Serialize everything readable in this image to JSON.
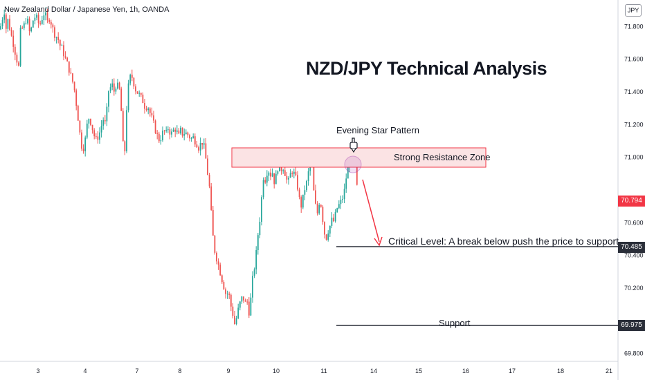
{
  "header": {
    "symbol_title": "New Zealand Dollar / Japanese Yen, 1h, OANDA",
    "currency": "JPY"
  },
  "annotations": {
    "main_title": "NZD/JPY Technical Analysis",
    "evening_star": "Evening Star Pattern",
    "resistance_zone": "Strong Resistance Zone",
    "critical_level": "Critical Level: A break below push the price to support",
    "support": "Support"
  },
  "price_labels": {
    "current": "70.794",
    "critical": "70.485",
    "support": "69.975"
  },
  "colors": {
    "up": "#26a69a",
    "down": "#ef5350",
    "zone_fill": "#fbe3e4",
    "zone_border": "#f23645",
    "level_line": "#2a2e39",
    "arrow": "#f23645"
  },
  "chart_data": {
    "type": "candlestick",
    "title": "NZD/JPY Technical Analysis",
    "instrument": "New Zealand Dollar / Japanese Yen, 1h, OANDA",
    "x_ticks": [
      "3",
      "4",
      "7",
      "8",
      "9",
      "10",
      "11",
      "14",
      "15",
      "16",
      "17",
      "18",
      "21"
    ],
    "y_ticks": [
      "71.800",
      "71.600",
      "71.400",
      "71.200",
      "71.000",
      "70.600",
      "70.400",
      "70.200",
      "69.800"
    ],
    "ylim": [
      69.75,
      71.96
    ],
    "key_levels": {
      "resistance_zone": [
        71.01,
        71.13
      ],
      "critical": 70.485,
      "support": 69.975,
      "current": 70.794
    },
    "price_path": [
      [
        0,
        71.78
      ],
      [
        3,
        71.84
      ],
      [
        6,
        71.9
      ],
      [
        9,
        71.78
      ],
      [
        12,
        71.85
      ],
      [
        15,
        71.76
      ],
      [
        18,
        71.72
      ],
      [
        21,
        71.66
      ],
      [
        24,
        71.6
      ],
      [
        27,
        71.55
      ],
      [
        30,
        71.8
      ],
      [
        33,
        71.78
      ],
      [
        36,
        71.82
      ],
      [
        39,
        71.86
      ],
      [
        42,
        71.76
      ],
      [
        45,
        71.78
      ],
      [
        48,
        71.84
      ],
      [
        51,
        71.86
      ],
      [
        54,
        71.84
      ],
      [
        57,
        71.8
      ],
      [
        60,
        71.84
      ],
      [
        63,
        71.88
      ],
      [
        66,
        71.86
      ],
      [
        69,
        71.82
      ],
      [
        72,
        71.86
      ],
      [
        75,
        71.8
      ],
      [
        78,
        71.76
      ],
      [
        81,
        71.74
      ],
      [
        84,
        71.72
      ],
      [
        87,
        71.68
      ],
      [
        90,
        71.66
      ],
      [
        93,
        71.62
      ],
      [
        96,
        71.58
      ],
      [
        99,
        71.55
      ],
      [
        102,
        71.5
      ],
      [
        105,
        71.46
      ],
      [
        108,
        71.4
      ],
      [
        111,
        71.3
      ],
      [
        114,
        71.2
      ],
      [
        117,
        71.08
      ],
      [
        120,
        71.05
      ],
      [
        123,
        71.1
      ],
      [
        126,
        71.2
      ],
      [
        129,
        71.25
      ],
      [
        132,
        71.2
      ],
      [
        135,
        71.15
      ],
      [
        138,
        71.1
      ],
      [
        141,
        71.12
      ],
      [
        144,
        71.15
      ],
      [
        147,
        71.2
      ],
      [
        150,
        71.24
      ],
      [
        153,
        71.18
      ],
      [
        156,
        71.4
      ],
      [
        159,
        71.42
      ],
      [
        162,
        71.44
      ],
      [
        165,
        71.4
      ],
      [
        168,
        71.45
      ],
      [
        171,
        71.42
      ],
      [
        174,
        71.4
      ],
      [
        177,
        71.1
      ],
      [
        180,
        71.0
      ],
      [
        183,
        71.3
      ],
      [
        186,
        71.45
      ],
      [
        189,
        71.5
      ],
      [
        192,
        71.48
      ],
      [
        195,
        71.42
      ],
      [
        198,
        71.4
      ],
      [
        201,
        71.38
      ],
      [
        204,
        71.36
      ],
      [
        207,
        71.34
      ],
      [
        210,
        71.3
      ],
      [
        213,
        71.32
      ],
      [
        216,
        71.28
      ],
      [
        219,
        71.24
      ],
      [
        222,
        71.2
      ],
      [
        225,
        71.16
      ],
      [
        228,
        71.12
      ],
      [
        231,
        71.1
      ],
      [
        234,
        71.14
      ],
      [
        237,
        71.16
      ],
      [
        240,
        71.14
      ],
      [
        243,
        71.18
      ],
      [
        246,
        71.15
      ],
      [
        249,
        71.14
      ],
      [
        252,
        71.18
      ],
      [
        255,
        71.16
      ],
      [
        258,
        71.12
      ],
      [
        261,
        71.16
      ],
      [
        264,
        71.14
      ],
      [
        267,
        71.15
      ],
      [
        270,
        71.14
      ],
      [
        273,
        71.13
      ],
      [
        276,
        71.11
      ],
      [
        279,
        71.12
      ],
      [
        282,
        71.1
      ],
      [
        285,
        71.08
      ],
      [
        288,
        71.05
      ],
      [
        291,
        71.1
      ],
      [
        294,
        71.08
      ],
      [
        297,
        71.0
      ],
      [
        300,
        70.9
      ],
      [
        303,
        70.8
      ],
      [
        306,
        70.6
      ],
      [
        309,
        70.45
      ],
      [
        312,
        70.4
      ],
      [
        315,
        70.35
      ],
      [
        318,
        70.3
      ],
      [
        321,
        70.25
      ],
      [
        324,
        70.2
      ],
      [
        327,
        70.15
      ],
      [
        330,
        70.18
      ],
      [
        333,
        70.1
      ],
      [
        336,
        70.05
      ],
      [
        339,
        69.98
      ],
      [
        342,
        70.02
      ],
      [
        345,
        70.08
      ],
      [
        348,
        70.12
      ],
      [
        351,
        70.15
      ],
      [
        354,
        70.1
      ],
      [
        357,
        70.12
      ],
      [
        360,
        70.05
      ],
      [
        363,
        70.15
      ],
      [
        366,
        70.3
      ],
      [
        369,
        70.35
      ],
      [
        372,
        70.5
      ],
      [
        375,
        70.6
      ],
      [
        378,
        70.75
      ],
      [
        381,
        70.9
      ],
      [
        384,
        70.85
      ],
      [
        387,
        70.95
      ],
      [
        390,
        70.88
      ],
      [
        393,
        70.92
      ],
      [
        396,
        70.85
      ],
      [
        399,
        70.88
      ],
      [
        402,
        70.95
      ],
      [
        405,
        70.9
      ],
      [
        408,
        70.95
      ],
      [
        411,
        70.92
      ],
      [
        414,
        70.86
      ],
      [
        417,
        70.85
      ],
      [
        420,
        70.9
      ],
      [
        423,
        70.92
      ],
      [
        426,
        70.88
      ],
      [
        429,
        70.85
      ],
      [
        432,
        70.75
      ],
      [
        435,
        70.7
      ],
      [
        438,
        70.75
      ],
      [
        441,
        70.82
      ],
      [
        444,
        70.85
      ],
      [
        447,
        70.95
      ],
      [
        450,
        71.02
      ],
      [
        453,
        70.8
      ],
      [
        456,
        70.7
      ],
      [
        459,
        70.65
      ],
      [
        462,
        70.75
      ],
      [
        465,
        70.68
      ],
      [
        468,
        70.55
      ],
      [
        471,
        70.5
      ],
      [
        474,
        70.55
      ],
      [
        477,
        70.58
      ],
      [
        480,
        70.62
      ],
      [
        483,
        70.6
      ],
      [
        486,
        70.68
      ],
      [
        489,
        70.7
      ],
      [
        492,
        70.72
      ],
      [
        495,
        70.75
      ],
      [
        498,
        70.8
      ],
      [
        501,
        70.9
      ],
      [
        504,
        70.95
      ],
      [
        507,
        71.0
      ],
      [
        510,
        71.05
      ],
      [
        513,
        71.02
      ],
      [
        516,
        70.8
      ]
    ]
  }
}
